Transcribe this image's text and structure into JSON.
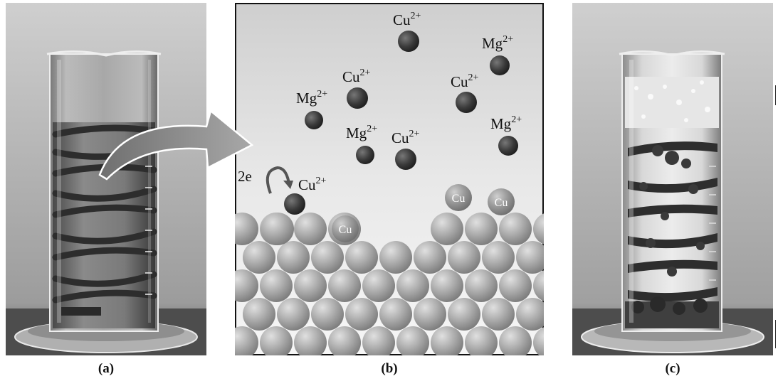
{
  "captions": {
    "a": "(a)",
    "b": "(b)",
    "c": "(c)"
  },
  "labels": {
    "cu2": "Cu",
    "mg2": "Mg",
    "charge": "2+",
    "cu": "Cu",
    "electrons": "2e"
  },
  "colors": {
    "ion": "#3a3a3a",
    "atom": "#9a9a9a",
    "arrow": "#8a8a8a"
  }
}
